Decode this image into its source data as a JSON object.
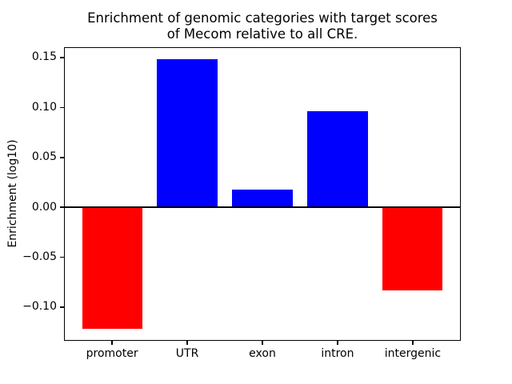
{
  "chart_data": {
    "type": "bar",
    "title": "Enrichment of genomic categories with target scores of Mecom relative to all CRE.",
    "title_lines": [
      "Enrichment of genomic categories with target scores",
      "of Mecom relative to all CRE."
    ],
    "categories": [
      "promoter",
      "UTR",
      "exon",
      "intron",
      "intergenic"
    ],
    "values": [
      -0.122,
      0.148,
      0.018,
      0.096,
      -0.083
    ],
    "bar_colors": [
      "#ff0000",
      "#0000ff",
      "#0000ff",
      "#0000ff",
      "#ff0000"
    ],
    "positive_color": "#0000ff",
    "negative_color": "#ff0000",
    "xlabel": "",
    "ylabel": "Enrichment (log10)",
    "yticks": [
      {
        "value": 0.15,
        "label": "0.15"
      },
      {
        "value": 0.1,
        "label": "0.10"
      },
      {
        "value": 0.05,
        "label": "0.05"
      },
      {
        "value": 0.0,
        "label": "0.00"
      },
      {
        "value": -0.05,
        "label": "−0.05"
      },
      {
        "value": -0.1,
        "label": "−0.10"
      }
    ],
    "ylim": [
      -0.1337,
      0.1604
    ],
    "zero_line": true,
    "grid": false,
    "legend": null,
    "background_color": "#ffffff",
    "axis_color": "#000000"
  }
}
